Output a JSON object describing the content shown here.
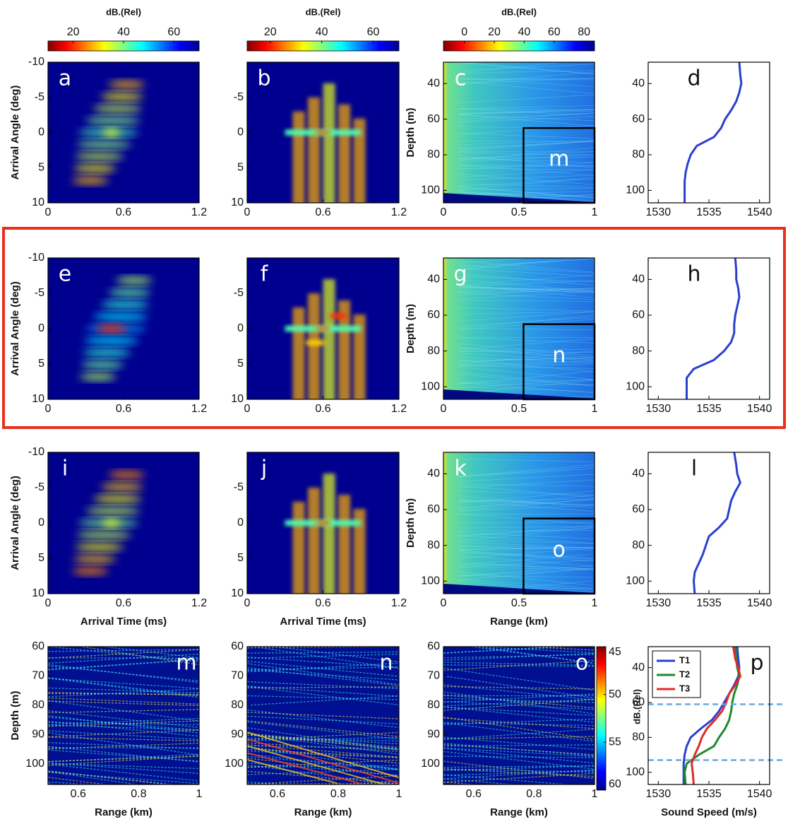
{
  "chart_data": [
    {
      "type": "heatmap",
      "label": "a",
      "ylabel": "Arrival Angle (deg)",
      "xlim": [
        0,
        1.2
      ],
      "xticks": [
        0,
        0.6,
        1.2
      ],
      "ylim": [
        -10,
        10
      ],
      "yticks": [
        -10,
        -5,
        0,
        5,
        10
      ],
      "y_inverted": true,
      "colorbar": {
        "label": "dB.(Rel)",
        "lim": [
          10,
          70
        ],
        "ticks": [
          20,
          40,
          60
        ]
      }
    },
    {
      "type": "heatmap",
      "label": "b",
      "xlim": [
        0,
        1.2
      ],
      "xticks": [
        0,
        0.6,
        1.2
      ],
      "ylim": [
        -10,
        10
      ],
      "yticks": [
        -5,
        0,
        5,
        10
      ],
      "y_inverted": true,
      "colorbar": {
        "label": "dB.(Rel)",
        "lim": [
          11,
          70
        ],
        "ticks": [
          20,
          40,
          60
        ]
      }
    },
    {
      "type": "heatmap",
      "label": "c",
      "ylabel": "Depth (m)",
      "xlim": [
        0,
        1
      ],
      "xticks": [
        0,
        0.5,
        1
      ],
      "ylim": [
        28,
        107
      ],
      "yticks": [
        40,
        60,
        80,
        100
      ],
      "y_inverted": true,
      "colorbar": {
        "label": "dB.(Rel)",
        "lim": [
          -14,
          87
        ],
        "ticks": [
          0,
          20,
          40,
          60,
          80
        ]
      },
      "inset": {
        "label": "m",
        "x": [
          0.53,
          1
        ],
        "y": [
          65,
          107
        ]
      }
    },
    {
      "type": "line",
      "label": "d",
      "xlim": [
        1529,
        1541
      ],
      "xticks": [
        1530,
        1535,
        1540
      ],
      "ylim": [
        28,
        107
      ],
      "yticks": [
        40,
        60,
        80,
        100
      ],
      "y_inverted": true,
      "y": [
        28,
        35,
        40,
        45,
        50,
        55,
        60,
        65,
        70,
        75,
        80,
        85,
        90,
        95,
        100,
        107
      ],
      "series": [
        {
          "color": "#2a3fd0",
          "values": [
            1538.0,
            1538.1,
            1538.2,
            1538.0,
            1537.7,
            1537.2,
            1536.6,
            1536.2,
            1535.5,
            1533.8,
            1533.2,
            1532.9,
            1532.7,
            1532.6,
            1532.6,
            1532.6
          ]
        }
      ]
    },
    {
      "type": "heatmap",
      "label": "e",
      "ylabel": "Arrival Angle (deg)",
      "xlim": [
        0,
        1.2
      ],
      "xticks": [
        0,
        0.6,
        1.2
      ],
      "ylim": [
        -10,
        10
      ],
      "yticks": [
        -10,
        -5,
        0,
        5,
        10
      ],
      "y_inverted": true
    },
    {
      "type": "heatmap",
      "label": "f",
      "xlim": [
        0,
        1.2
      ],
      "xticks": [
        0,
        0.6,
        1.2
      ],
      "ylim": [
        -10,
        10
      ],
      "yticks": [
        -5,
        0,
        5,
        10
      ],
      "y_inverted": true
    },
    {
      "type": "heatmap",
      "label": "g",
      "ylabel": "Depth (m)",
      "xlim": [
        0,
        1
      ],
      "xticks": [
        0,
        0.5,
        1
      ],
      "ylim": [
        28,
        107
      ],
      "yticks": [
        40,
        60,
        80,
        100
      ],
      "y_inverted": true,
      "inset": {
        "label": "n",
        "x": [
          0.53,
          1
        ],
        "y": [
          65,
          107
        ]
      }
    },
    {
      "type": "line",
      "label": "h",
      "xlim": [
        1529,
        1541
      ],
      "xticks": [
        1530,
        1535,
        1540
      ],
      "ylim": [
        28,
        107
      ],
      "yticks": [
        40,
        60,
        80,
        100
      ],
      "y_inverted": true,
      "y": [
        28,
        35,
        40,
        45,
        50,
        55,
        60,
        65,
        70,
        75,
        80,
        85,
        90,
        95,
        100,
        107
      ],
      "series": [
        {
          "color": "#2a3fd0",
          "values": [
            1537.6,
            1537.7,
            1537.7,
            1537.9,
            1538.0,
            1537.8,
            1537.6,
            1537.5,
            1537.5,
            1537.2,
            1536.5,
            1535.5,
            1533.5,
            1532.8,
            1532.8,
            1532.8
          ]
        }
      ]
    },
    {
      "type": "heatmap",
      "label": "i",
      "ylabel": "Arrival Angle (deg)",
      "xlabel": "Arrival Time (ms)",
      "xlim": [
        0,
        1.2
      ],
      "xticks": [
        0,
        0.6,
        1.2
      ],
      "ylim": [
        -10,
        10
      ],
      "yticks": [
        -10,
        -5,
        0,
        5,
        10
      ],
      "y_inverted": true
    },
    {
      "type": "heatmap",
      "label": "j",
      "xlabel": "Arrival Time (ms)",
      "xlim": [
        0,
        1.2
      ],
      "xticks": [
        0,
        0.6,
        1.2
      ],
      "ylim": [
        -10,
        10
      ],
      "yticks": [
        -5,
        0,
        5,
        10
      ],
      "y_inverted": true
    },
    {
      "type": "heatmap",
      "label": "k",
      "ylabel": "Depth (m)",
      "xlabel": "Range (km)",
      "xlim": [
        0,
        1
      ],
      "xticks": [
        0,
        0.5,
        1
      ],
      "ylim": [
        28,
        107
      ],
      "yticks": [
        40,
        60,
        80,
        100
      ],
      "y_inverted": true,
      "inset": {
        "label": "o",
        "x": [
          0.53,
          1
        ],
        "y": [
          65,
          107
        ]
      }
    },
    {
      "type": "line",
      "label": "l",
      "xlim": [
        1529,
        1541
      ],
      "xticks": [
        1530,
        1535,
        1540
      ],
      "ylim": [
        28,
        107
      ],
      "yticks": [
        40,
        60,
        80,
        100
      ],
      "y_inverted": true,
      "y": [
        28,
        35,
        40,
        45,
        50,
        55,
        60,
        65,
        70,
        75,
        80,
        85,
        90,
        95,
        100,
        107
      ],
      "series": [
        {
          "color": "#2a3fd0",
          "values": [
            1537.5,
            1537.7,
            1537.8,
            1538.1,
            1537.6,
            1537.2,
            1537.0,
            1536.8,
            1536.0,
            1535.0,
            1534.7,
            1534.4,
            1534.0,
            1533.6,
            1533.5,
            1533.6
          ]
        }
      ]
    },
    {
      "type": "heatmap",
      "label": "m",
      "ylabel": "Depth (m)",
      "xlabel": "Range (km)",
      "xlim": [
        0.5,
        1
      ],
      "xticks": [
        0.6,
        0.8,
        1
      ],
      "ylim": [
        60,
        107
      ],
      "yticks": [
        60,
        70,
        80,
        90,
        100
      ],
      "y_inverted": true
    },
    {
      "type": "heatmap",
      "label": "n",
      "xlabel": "Range (km)",
      "xlim": [
        0.5,
        1
      ],
      "xticks": [
        0.6,
        0.8,
        1
      ],
      "ylim": [
        60,
        107
      ],
      "yticks": [
        60,
        70,
        80,
        90,
        100
      ],
      "y_inverted": true
    },
    {
      "type": "heatmap",
      "label": "o",
      "xlabel": "Range (km)",
      "xlim": [
        0.5,
        1
      ],
      "xticks": [
        0.6,
        0.8,
        1
      ],
      "ylim": [
        60,
        107
      ],
      "yticks": [
        60,
        70,
        80,
        90,
        100
      ],
      "y_inverted": true,
      "colorbar": {
        "label": "dB.(Rel)",
        "lim": [
          45,
          60
        ],
        "ticks": [
          45,
          50,
          55,
          60
        ],
        "vertical": true
      }
    },
    {
      "type": "line",
      "label": "p",
      "xlabel": "Sound Speed (m/s)",
      "xlim": [
        1529,
        1541
      ],
      "xticks": [
        1530,
        1535,
        1540
      ],
      "ylim": [
        28,
        107
      ],
      "yticks": [
        40,
        60,
        80,
        100
      ],
      "y_inverted": true,
      "legend": "upper left",
      "hlines": [
        61,
        93
      ],
      "hline_color": "#6aa8e0",
      "y": [
        28,
        35,
        40,
        45,
        50,
        55,
        60,
        65,
        70,
        75,
        80,
        85,
        90,
        95,
        100,
        107
      ],
      "series": [
        {
          "name": "T1",
          "color": "#2a3fd0",
          "values": [
            1537.8,
            1537.9,
            1538.0,
            1537.9,
            1537.5,
            1537.0,
            1536.5,
            1536.0,
            1535.3,
            1534.2,
            1533.2,
            1532.8,
            1532.6,
            1532.5,
            1532.5,
            1532.5
          ]
        },
        {
          "name": "T2",
          "color": "#1e8a2a",
          "values": [
            1537.6,
            1537.7,
            1537.8,
            1538.0,
            1537.8,
            1537.5,
            1537.3,
            1537.2,
            1537.0,
            1536.6,
            1536.0,
            1535.5,
            1534.0,
            1532.8,
            1532.6,
            1532.7
          ]
        },
        {
          "name": "T3",
          "color": "#e02a2a",
          "values": [
            1537.4,
            1537.6,
            1537.9,
            1538.1,
            1537.6,
            1537.0,
            1536.7,
            1536.3,
            1535.6,
            1534.8,
            1534.3,
            1534.0,
            1533.6,
            1533.3,
            1533.4,
            1533.5
          ]
        }
      ]
    }
  ]
}
